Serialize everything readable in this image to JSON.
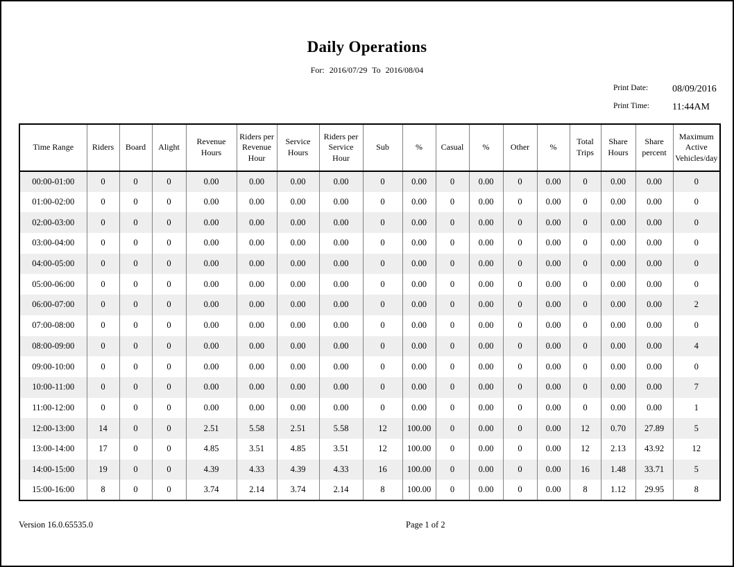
{
  "page": {
    "title": "Daily Operations",
    "subtitle": "For: 2016/07/29 To 2016/08/04"
  },
  "print_info": {
    "date_label": "Print Date:",
    "date_value": "08/09/2016",
    "time_label": "Print Time:",
    "time_value": "11:44AM"
  },
  "table": {
    "columns": [
      "Time Range",
      "Riders",
      "Board",
      "Alight",
      "Revenue Hours",
      "Riders per Revenue Hour",
      "Service Hours",
      "Riders per Service Hour",
      "Sub",
      "%",
      "Casual",
      "%",
      "Other",
      "%",
      "Total Trips",
      "Share Hours",
      "Share percent",
      "Maximum Active Vehicles/day"
    ],
    "rows": [
      [
        "00:00-01:00",
        "0",
        "0",
        "0",
        "0.00",
        "0.00",
        "0.00",
        "0.00",
        "0",
        "0.00",
        "0",
        "0.00",
        "0",
        "0.00",
        "0",
        "0.00",
        "0.00",
        "0"
      ],
      [
        "01:00-02:00",
        "0",
        "0",
        "0",
        "0.00",
        "0.00",
        "0.00",
        "0.00",
        "0",
        "0.00",
        "0",
        "0.00",
        "0",
        "0.00",
        "0",
        "0.00",
        "0.00",
        "0"
      ],
      [
        "02:00-03:00",
        "0",
        "0",
        "0",
        "0.00",
        "0.00",
        "0.00",
        "0.00",
        "0",
        "0.00",
        "0",
        "0.00",
        "0",
        "0.00",
        "0",
        "0.00",
        "0.00",
        "0"
      ],
      [
        "03:00-04:00",
        "0",
        "0",
        "0",
        "0.00",
        "0.00",
        "0.00",
        "0.00",
        "0",
        "0.00",
        "0",
        "0.00",
        "0",
        "0.00",
        "0",
        "0.00",
        "0.00",
        "0"
      ],
      [
        "04:00-05:00",
        "0",
        "0",
        "0",
        "0.00",
        "0.00",
        "0.00",
        "0.00",
        "0",
        "0.00",
        "0",
        "0.00",
        "0",
        "0.00",
        "0",
        "0.00",
        "0.00",
        "0"
      ],
      [
        "05:00-06:00",
        "0",
        "0",
        "0",
        "0.00",
        "0.00",
        "0.00",
        "0.00",
        "0",
        "0.00",
        "0",
        "0.00",
        "0",
        "0.00",
        "0",
        "0.00",
        "0.00",
        "0"
      ],
      [
        "06:00-07:00",
        "0",
        "0",
        "0",
        "0.00",
        "0.00",
        "0.00",
        "0.00",
        "0",
        "0.00",
        "0",
        "0.00",
        "0",
        "0.00",
        "0",
        "0.00",
        "0.00",
        "2"
      ],
      [
        "07:00-08:00",
        "0",
        "0",
        "0",
        "0.00",
        "0.00",
        "0.00",
        "0.00",
        "0",
        "0.00",
        "0",
        "0.00",
        "0",
        "0.00",
        "0",
        "0.00",
        "0.00",
        "0"
      ],
      [
        "08:00-09:00",
        "0",
        "0",
        "0",
        "0.00",
        "0.00",
        "0.00",
        "0.00",
        "0",
        "0.00",
        "0",
        "0.00",
        "0",
        "0.00",
        "0",
        "0.00",
        "0.00",
        "4"
      ],
      [
        "09:00-10:00",
        "0",
        "0",
        "0",
        "0.00",
        "0.00",
        "0.00",
        "0.00",
        "0",
        "0.00",
        "0",
        "0.00",
        "0",
        "0.00",
        "0",
        "0.00",
        "0.00",
        "0"
      ],
      [
        "10:00-11:00",
        "0",
        "0",
        "0",
        "0.00",
        "0.00",
        "0.00",
        "0.00",
        "0",
        "0.00",
        "0",
        "0.00",
        "0",
        "0.00",
        "0",
        "0.00",
        "0.00",
        "7"
      ],
      [
        "11:00-12:00",
        "0",
        "0",
        "0",
        "0.00",
        "0.00",
        "0.00",
        "0.00",
        "0",
        "0.00",
        "0",
        "0.00",
        "0",
        "0.00",
        "0",
        "0.00",
        "0.00",
        "1"
      ],
      [
        "12:00-13:00",
        "14",
        "0",
        "0",
        "2.51",
        "5.58",
        "2.51",
        "5.58",
        "12",
        "100.00",
        "0",
        "0.00",
        "0",
        "0.00",
        "12",
        "0.70",
        "27.89",
        "5"
      ],
      [
        "13:00-14:00",
        "17",
        "0",
        "0",
        "4.85",
        "3.51",
        "4.85",
        "3.51",
        "12",
        "100.00",
        "0",
        "0.00",
        "0",
        "0.00",
        "12",
        "2.13",
        "43.92",
        "12"
      ],
      [
        "14:00-15:00",
        "19",
        "0",
        "0",
        "4.39",
        "4.33",
        "4.39",
        "4.33",
        "16",
        "100.00",
        "0",
        "0.00",
        "0",
        "0.00",
        "16",
        "1.48",
        "33.71",
        "5"
      ],
      [
        "15:00-16:00",
        "8",
        "0",
        "0",
        "3.74",
        "2.14",
        "3.74",
        "2.14",
        "8",
        "100.00",
        "0",
        "0.00",
        "0",
        "0.00",
        "8",
        "1.12",
        "29.95",
        "8"
      ]
    ]
  },
  "footer": {
    "version": "Version 16.0.65535.0",
    "page": "Page 1 of 2"
  },
  "colors": {
    "row_alt": "#eeeeee",
    "grid_line": "#808080",
    "border": "#000000"
  }
}
